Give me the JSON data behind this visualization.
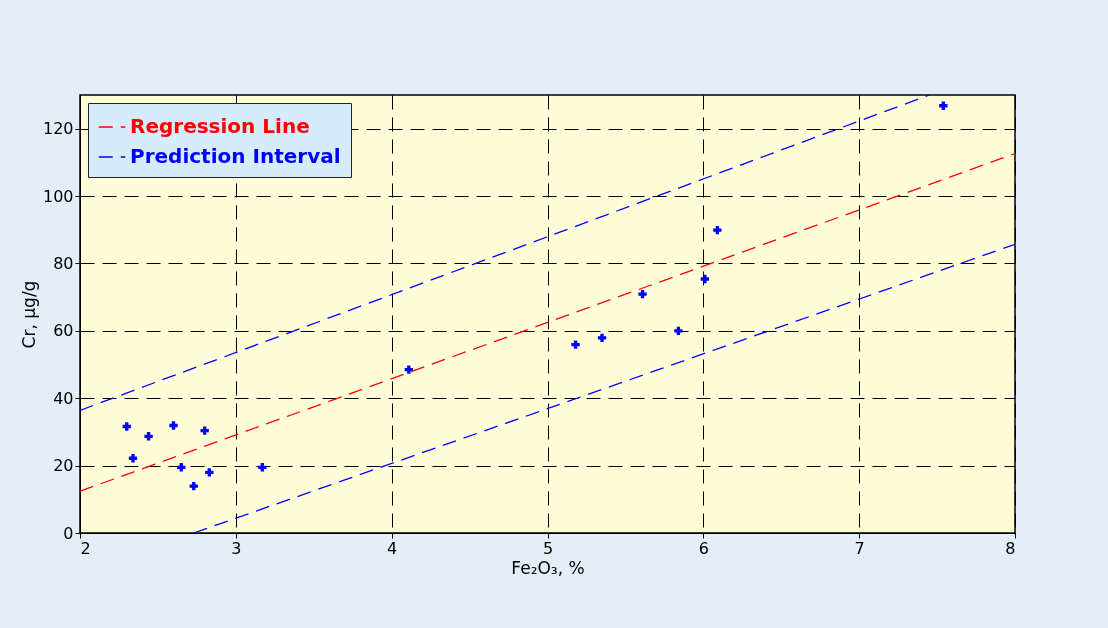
{
  "chart_data": {
    "type": "scatter",
    "xlabel": "Fe₂O₃, %",
    "ylabel": "Cr, μg/g",
    "xlim": [
      2,
      8
    ],
    "ylim": [
      0,
      130
    ],
    "xticks": [
      2,
      3,
      4,
      5,
      6,
      7,
      8
    ],
    "yticks": [
      0,
      20,
      40,
      60,
      80,
      100,
      120
    ],
    "grid": true,
    "legend": "top left",
    "series": [
      {
        "marker": "cross",
        "color": "#0000ff",
        "x": [
          2.3,
          2.34,
          2.44,
          2.6,
          2.65,
          2.73,
          2.8,
          2.83,
          3.17,
          4.11,
          5.18,
          5.35,
          5.61,
          5.84,
          6.01,
          6.09,
          7.54
        ],
        "values": [
          31.6,
          22.2,
          28.7,
          31.9,
          19.5,
          13.9,
          30.4,
          18.0,
          19.5,
          48.5,
          55.9,
          57.9,
          70.9,
          60.0,
          75.4,
          89.9,
          126.8
        ]
      },
      {
        "type": "line",
        "name": "Regression Line",
        "color": "#ff0000",
        "line_style": "dashed",
        "x": [
          2,
          8
        ],
        "values": [
          12.4,
          112.6
        ]
      },
      {
        "type": "line",
        "name": "Prediction Interval",
        "color": "#0000ff",
        "line_style": "dashed",
        "x": [
          2,
          7.45
        ],
        "values": [
          36.4,
          130
        ]
      },
      {
        "type": "line",
        "color": "#0000ff",
        "line_style": "dashed",
        "x": [
          2.73,
          8
        ],
        "values": [
          0,
          85.7
        ]
      }
    ]
  }
}
